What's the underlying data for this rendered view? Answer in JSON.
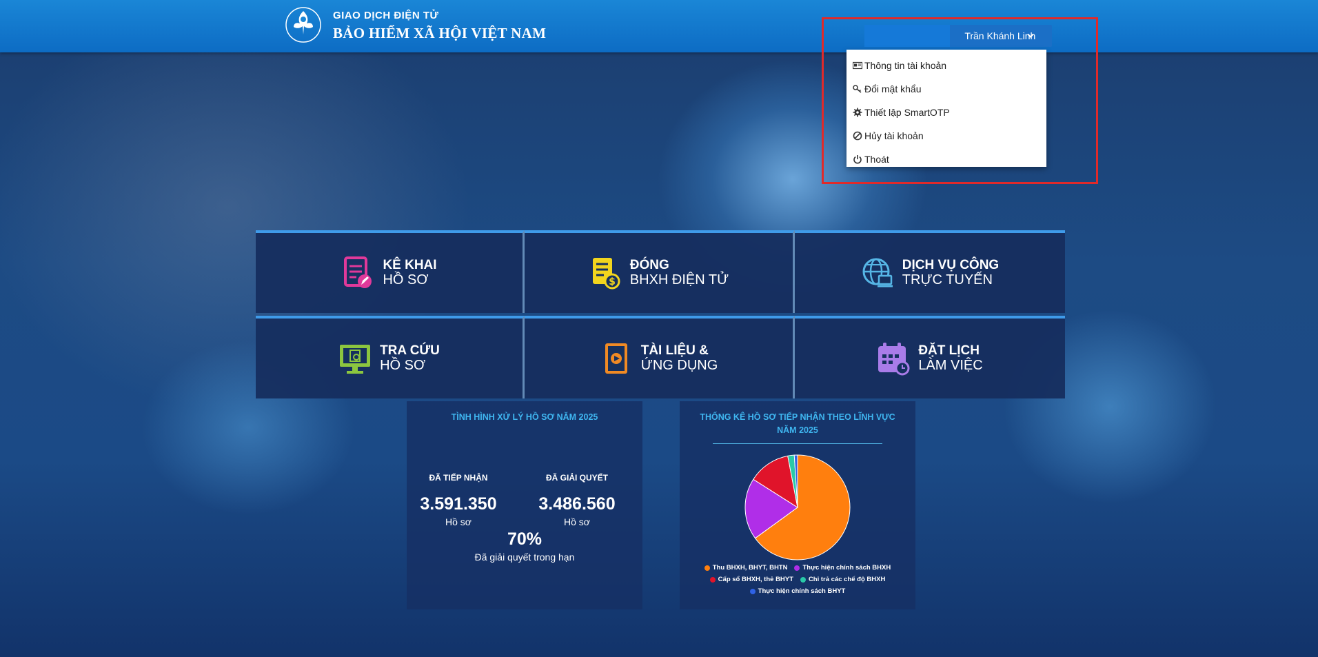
{
  "header": {
    "brand_line1": "GIAO DỊCH ĐIỆN TỬ",
    "brand_line2": "BẢO HIỂM XÃ HỘI VIỆT NAM",
    "logo_icon": "bhxh-logo-icon",
    "user_name": "Trần Khánh Linh"
  },
  "user_menu": {
    "items": [
      {
        "label": "Thông tin tài khoản",
        "icon": "id-card-icon"
      },
      {
        "label": "Đổi mật khẩu",
        "icon": "key-icon"
      },
      {
        "label": "Thiết lập SmartOTP",
        "icon": "gear-icon"
      },
      {
        "label": "Hủy tài khoản",
        "icon": "ban-icon"
      },
      {
        "label": "Thoát",
        "icon": "power-icon"
      }
    ]
  },
  "tiles": [
    {
      "line1": "KÊ KHAI",
      "line2": "HỒ SƠ",
      "icon": "document-edit-icon",
      "color": "#e0399a"
    },
    {
      "line1": "ĐÓNG",
      "line2": "BHXH ĐIỆN TỬ",
      "icon": "payment-document-icon",
      "color": "#f2d51e"
    },
    {
      "line1": "DỊCH VỤ CÔNG",
      "line2": "TRỰC TUYẾN",
      "icon": "globe-icon",
      "color": "#56b6e6"
    },
    {
      "line1": "TRA CỨU",
      "line2": "HỒ SƠ",
      "icon": "monitor-search-icon",
      "color": "#8cc63f"
    },
    {
      "line1": "TÀI LIỆU &",
      "line2": "ỨNG DỤNG",
      "icon": "book-play-icon",
      "color": "#f08a24"
    },
    {
      "line1": "ĐẶT LỊCH",
      "line2": "LÀM VIỆC",
      "icon": "calendar-icon",
      "color": "#a97ce8"
    }
  ],
  "stats_panel": {
    "title": "TÌNH HÌNH XỬ LÝ HỒ SƠ NĂM 2025",
    "received_label": "ĐÃ TIẾP NHẬN",
    "received_value": "3.591.350",
    "received_unit": "Hồ sơ",
    "resolved_label": "ĐÃ GIẢI QUYẾT",
    "resolved_value": "3.486.560",
    "resolved_unit": "Hồ sơ",
    "ontime_pct": "70%",
    "ontime_label": "Đã giải quyết trong hạn"
  },
  "chart_panel": {
    "title_line1": "THỐNG KÊ HỒ SƠ TIẾP NHẬN THEO LĨNH VỰC",
    "title_line2": "NĂM 2025"
  },
  "chart_data": {
    "type": "pie",
    "title": "THỐNG KÊ HỒ SƠ TIẾP NHẬN THEO LĨNH VỰC NĂM 2025",
    "categories": [
      "Thu BHXH, BHYT, BHTN",
      "Thực hiện chính sách BHXH",
      "Cấp sổ BHXH, thẻ BHYT",
      "Chi trả các chế độ BHXH",
      "Thực hiện chính sách BHYT"
    ],
    "values": [
      65,
      19,
      13,
      2,
      1
    ],
    "colors": [
      "#ff7f0e",
      "#b02ee8",
      "#e0142a",
      "#29c9a8",
      "#2f62e6"
    ],
    "legend_position": "bottom"
  }
}
